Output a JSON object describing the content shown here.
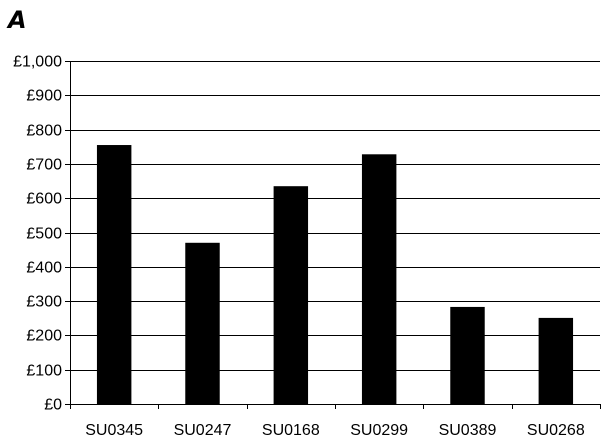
{
  "panel_label": "A",
  "chart_data": {
    "type": "bar",
    "title": "",
    "xlabel": "",
    "ylabel": "",
    "categories": [
      "SU0345",
      "SU0247",
      "SU0168",
      "SU0299",
      "SU0389",
      "SU0268"
    ],
    "values": [
      755,
      470,
      635,
      728,
      283,
      251
    ],
    "ylim": [
      0,
      1000
    ],
    "yticks": [
      0,
      100,
      200,
      300,
      400,
      500,
      600,
      700,
      800,
      900,
      1000
    ],
    "ytick_labels": [
      "£0",
      "£100",
      "£200",
      "£300",
      "£400",
      "£500",
      "£600",
      "£700",
      "£800",
      "£900",
      "£1,000"
    ],
    "grid": true,
    "bar_color": "#000000",
    "grid_color": "#000000"
  }
}
